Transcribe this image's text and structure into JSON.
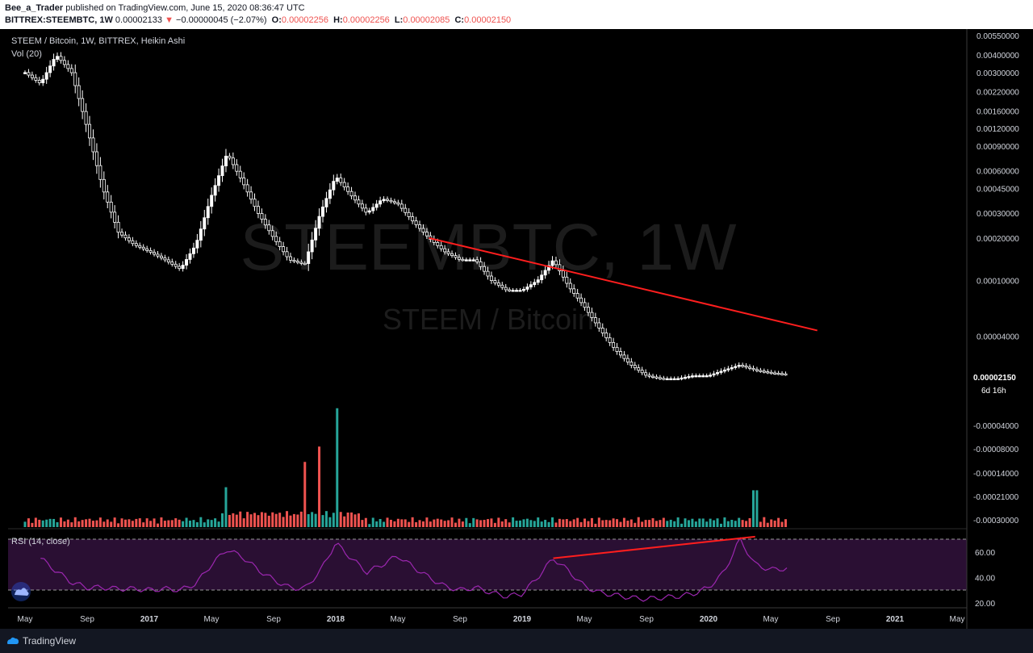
{
  "header": {
    "author": "Bee_a_Trader",
    "published_text": "published on TradingView.com, June 15, 2020 08:36:47 UTC",
    "symbol": "BITTREX:STEEMBTC, 1W",
    "last": "0.00002133",
    "change": "−0.00000045 (−2.07%)",
    "o_label": "O:",
    "o": "0.00002256",
    "h_label": "H:",
    "h": "0.00002256",
    "l_label": "L:",
    "l": "0.00002085",
    "c_label": "C:",
    "c": "0.00002150"
  },
  "legend": {
    "title": "STEEM / Bitcoin, 1W, BITTREX, Heikin Ashi",
    "volume": "Vol (20)",
    "rsi": "RSI (14, close)"
  },
  "watermark": {
    "line1": "STEEMBTC, 1W",
    "line2": "STEEM / Bitcoin"
  },
  "footer": {
    "brand": "TradingView"
  },
  "colors": {
    "up": "#26a69a",
    "down": "#ef5350",
    "candle": "#ffffff",
    "trendline": "#ff1e1e",
    "rsi": "#9c27b0",
    "rsi_band": "#2a0f33"
  },
  "chart_data": [
    {
      "type": "candlestick",
      "title": "STEEM / Bitcoin, 1W, BITTREX, Heikin Ashi",
      "scale": "log",
      "ylim": [
        1.9e-05,
        0.0055
      ],
      "price_ticks": [
        "0.00550000",
        "0.00400000",
        "0.00300000",
        "0.00220000",
        "0.00160000",
        "0.00120000",
        "0.00090000",
        "0.00060000",
        "0.00045000",
        "0.00030000",
        "0.00020000",
        "0.00010000",
        "0.00004000"
      ],
      "price_tick_values": [
        0.0055,
        0.004,
        0.003,
        0.0022,
        0.0016,
        0.0012,
        0.0009,
        0.0006,
        0.00045,
        0.0003,
        0.0002,
        0.0001,
        4e-05
      ],
      "last_price_label": "0.00002150",
      "countdown_label": "6d 16h",
      "x_labels": [
        "May",
        "Sep",
        "2017",
        "May",
        "Sep",
        "2018",
        "May",
        "Sep",
        "2019",
        "May",
        "Sep",
        "2020",
        "May",
        "Sep",
        "2021",
        "May"
      ],
      "x_label_dates": [
        "2016-05",
        "2016-09",
        "2017-01",
        "2017-05",
        "2017-09",
        "2018-01",
        "2018-05",
        "2018-09",
        "2019-01",
        "2019-05",
        "2019-09",
        "2020-01",
        "2020-05",
        "2020-09",
        "2021-01",
        "2021-05"
      ],
      "closes_by_month": [
        [
          "2016-05",
          0.003
        ],
        [
          "2016-06",
          0.0025
        ],
        [
          "2016-07",
          0.004
        ],
        [
          "2016-08",
          0.003
        ],
        [
          "2016-09",
          0.0012
        ],
        [
          "2016-10",
          0.00045
        ],
        [
          "2016-11",
          0.00022
        ],
        [
          "2016-12",
          0.00018
        ],
        [
          "2017-01",
          0.00016
        ],
        [
          "2017-02",
          0.00014
        ],
        [
          "2017-03",
          0.00012
        ],
        [
          "2017-04",
          0.00018
        ],
        [
          "2017-05",
          0.0004
        ],
        [
          "2017-06",
          0.0008
        ],
        [
          "2017-07",
          0.0005
        ],
        [
          "2017-08",
          0.0003
        ],
        [
          "2017-09",
          0.0002
        ],
        [
          "2017-10",
          0.00014
        ],
        [
          "2017-11",
          0.00013
        ],
        [
          "2017-12",
          0.0003
        ],
        [
          "2018-01",
          0.00055
        ],
        [
          "2018-02",
          0.0004
        ],
        [
          "2018-03",
          0.0003
        ],
        [
          "2018-04",
          0.00038
        ],
        [
          "2018-05",
          0.00035
        ],
        [
          "2018-06",
          0.00026
        ],
        [
          "2018-07",
          0.0002
        ],
        [
          "2018-08",
          0.00016
        ],
        [
          "2018-09",
          0.00014
        ],
        [
          "2018-10",
          0.00014
        ],
        [
          "2018-11",
          0.0001
        ],
        [
          "2018-12",
          8.5e-05
        ],
        [
          "2019-01",
          8.5e-05
        ],
        [
          "2019-02",
          0.0001
        ],
        [
          "2019-03",
          0.00014
        ],
        [
          "2019-04",
          9e-05
        ],
        [
          "2019-05",
          6.5e-05
        ],
        [
          "2019-06",
          4.5e-05
        ],
        [
          "2019-07",
          3.2e-05
        ],
        [
          "2019-08",
          2.5e-05
        ],
        [
          "2019-09",
          2.1e-05
        ],
        [
          "2019-10",
          2e-05
        ],
        [
          "2019-11",
          2e-05
        ],
        [
          "2019-12",
          2.1e-05
        ],
        [
          "2020-01",
          2.1e-05
        ],
        [
          "2020-02",
          2.3e-05
        ],
        [
          "2020-03",
          2.5e-05
        ],
        [
          "2020-04",
          2.3e-05
        ],
        [
          "2020-05",
          2.2e-05
        ],
        [
          "2020-06",
          2.15e-05
        ]
      ],
      "trendline": {
        "from": [
          "2018-07",
          0.0002
        ],
        "to": [
          "2020-08",
          4.4e-05
        ]
      }
    },
    {
      "type": "bar",
      "title": "Vol (20)",
      "y_ticks": [
        "0.00002133",
        "-0.00004000",
        "-0.00008000",
        "-0.00014000",
        "-0.00021000",
        "-0.00030000"
      ],
      "notable_bars": [
        {
          "date": "2017-11",
          "value": 85,
          "color": "down"
        },
        {
          "date": "2017-12",
          "value": 105,
          "color": "down"
        },
        {
          "date": "2018-01",
          "value": 155,
          "color": "up"
        },
        {
          "date": "2017-06",
          "value": 52,
          "color": "up"
        },
        {
          "date": "2020-04",
          "value": 48,
          "color": "up"
        }
      ]
    },
    {
      "type": "line",
      "title": "RSI (14, close)",
      "ylim": [
        18,
        75
      ],
      "y_ticks": [
        "60.00",
        "40.00",
        "20.00"
      ],
      "y_tick_values": [
        60,
        40,
        20
      ],
      "bands": [
        70,
        30
      ],
      "values_by_month": [
        [
          "2016-06",
          55
        ],
        [
          "2016-07",
          45
        ],
        [
          "2016-08",
          36
        ],
        [
          "2016-09",
          32
        ],
        [
          "2016-10",
          32
        ],
        [
          "2016-11",
          31
        ],
        [
          "2016-12",
          31
        ],
        [
          "2017-01",
          30
        ],
        [
          "2017-02",
          31
        ],
        [
          "2017-03",
          30
        ],
        [
          "2017-04",
          35
        ],
        [
          "2017-05",
          50
        ],
        [
          "2017-06",
          62
        ],
        [
          "2017-07",
          56
        ],
        [
          "2017-08",
          46
        ],
        [
          "2017-09",
          38
        ],
        [
          "2017-10",
          32
        ],
        [
          "2017-11",
          31
        ],
        [
          "2017-12",
          45
        ],
        [
          "2018-01",
          67
        ],
        [
          "2018-02",
          55
        ],
        [
          "2018-03",
          44
        ],
        [
          "2018-04",
          50
        ],
        [
          "2018-05",
          57
        ],
        [
          "2018-06",
          48
        ],
        [
          "2018-07",
          40
        ],
        [
          "2018-08",
          33
        ],
        [
          "2018-09",
          30
        ],
        [
          "2018-10",
          32
        ],
        [
          "2018-11",
          28
        ],
        [
          "2018-12",
          25
        ],
        [
          "2019-01",
          27
        ],
        [
          "2019-02",
          40
        ],
        [
          "2019-03",
          55
        ],
        [
          "2019-04",
          45
        ],
        [
          "2019-05",
          33
        ],
        [
          "2019-06",
          28
        ],
        [
          "2019-07",
          26
        ],
        [
          "2019-08",
          24
        ],
        [
          "2019-09",
          23
        ],
        [
          "2019-10",
          24
        ],
        [
          "2019-11",
          25
        ],
        [
          "2019-12",
          27
        ],
        [
          "2020-01",
          32
        ],
        [
          "2020-02",
          44
        ],
        [
          "2020-03",
          70
        ],
        [
          "2020-04",
          50
        ],
        [
          "2020-05",
          46
        ],
        [
          "2020-06",
          47
        ]
      ],
      "trendline": {
        "from": [
          "2019-03",
          55
        ],
        "to": [
          "2020-04",
          72
        ]
      }
    }
  ]
}
